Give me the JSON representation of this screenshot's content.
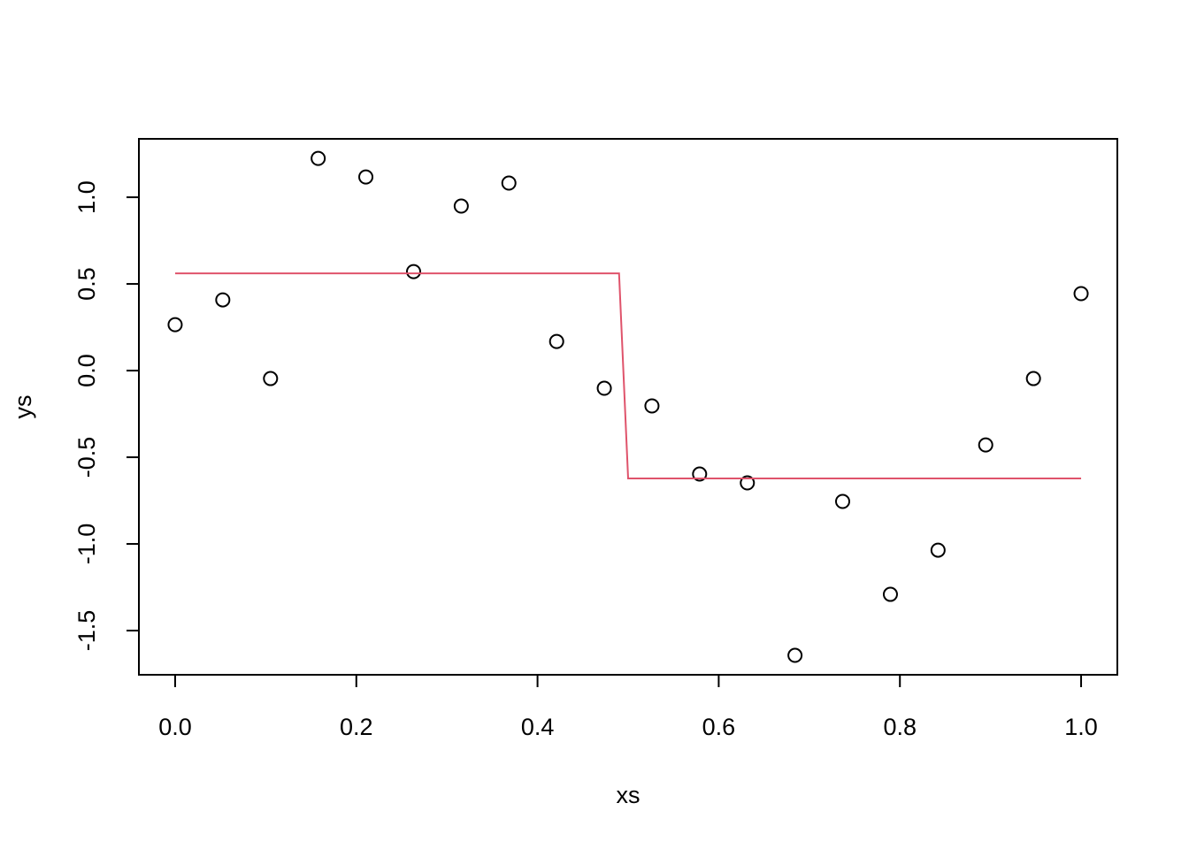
{
  "chart_data": {
    "type": "scatter",
    "x_label": "xs",
    "y_label": "ys",
    "xlim": [
      -0.04,
      1.04
    ],
    "ylim": [
      -1.755,
      1.337
    ],
    "xticks": [
      {
        "value": 0,
        "label": "0.0"
      },
      0.2,
      0.4,
      0.6,
      0.8,
      {
        "value": 1,
        "label": "1.0"
      }
    ],
    "yticks": [
      -1.5,
      {
        "value": -1,
        "label": "-1.0"
      },
      -0.5,
      {
        "value": 0,
        "label": "0.0"
      },
      0.5,
      {
        "value": 1,
        "label": "1.0"
      }
    ],
    "series": [
      {
        "type": "scatter",
        "color": "#000000",
        "x": [
          0,
          0.0526,
          0.1053,
          0.1579,
          0.2105,
          0.2632,
          0.3158,
          0.3684,
          0.4211,
          0.4737,
          0.5263,
          0.5789,
          0.6316,
          0.6842,
          0.7368,
          0.7895,
          0.8421,
          0.8947,
          0.9474,
          1
        ],
        "values": [
          0.265,
          0.408,
          -0.046,
          1.224,
          1.117,
          0.571,
          0.949,
          1.082,
          0.168,
          -0.102,
          -0.204,
          -0.597,
          -0.648,
          -1.643,
          -0.755,
          -1.291,
          -1.036,
          -0.429,
          -0.046,
          0.444
        ]
      },
      {
        "type": "line",
        "color": "#DF536B",
        "x": [
          0,
          0.49,
          0.5,
          1
        ],
        "values": [
          0.561,
          0.561,
          -0.622,
          -0.622
        ]
      }
    ]
  }
}
